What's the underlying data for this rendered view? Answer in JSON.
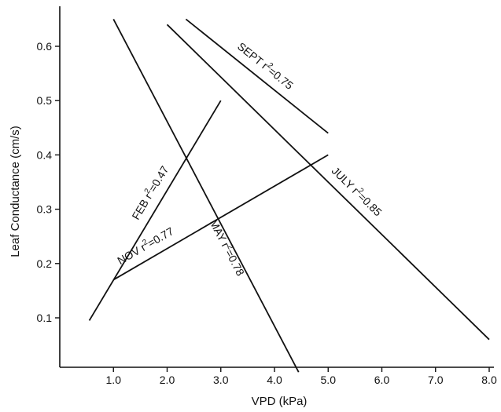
{
  "chart_data": {
    "type": "line",
    "xlabel": "VPD (kPa)",
    "ylabel": "Leaf Conductance (cm/s)",
    "xlim": [
      0,
      8.0
    ],
    "ylim": [
      0,
      0.65
    ],
    "x_ticks": [
      {
        "value": 1.0,
        "label": "1.0"
      },
      {
        "value": 2.0,
        "label": "2.0"
      },
      {
        "value": 3.0,
        "label": "3.0"
      },
      {
        "value": 4.0,
        "label": "4.0"
      },
      {
        "value": 5.0,
        "label": "5.0"
      },
      {
        "value": 6.0,
        "label": "6.0"
      },
      {
        "value": 7.0,
        "label": "7.0"
      },
      {
        "value": 8.0,
        "label": "8.0"
      }
    ],
    "y_ticks": [
      {
        "value": 0.1,
        "label": "0.1"
      },
      {
        "value": 0.2,
        "label": "0.2"
      },
      {
        "value": 0.3,
        "label": "0.3"
      },
      {
        "value": 0.4,
        "label": "0.4"
      },
      {
        "value": 0.5,
        "label": "0.5"
      },
      {
        "value": 0.6,
        "label": "0.6"
      }
    ],
    "series": [
      {
        "name": "FEB",
        "r2": "0.47",
        "x": [
          0.55,
          3.0
        ],
        "y": [
          0.095,
          0.5
        ]
      },
      {
        "name": "NOV",
        "r2": "0.77",
        "x": [
          1.0,
          5.0
        ],
        "y": [
          0.17,
          0.4
        ]
      },
      {
        "name": "MAY",
        "r2": "0.78",
        "x": [
          1.0,
          4.45
        ],
        "y": [
          0.65,
          0.0
        ]
      },
      {
        "name": "JULY",
        "r2": "0.85",
        "x": [
          2.0,
          8.0
        ],
        "y": [
          0.64,
          0.06
        ]
      },
      {
        "name": "SEPT",
        "r2": "0.75",
        "x": [
          2.35,
          5.0
        ],
        "y": [
          0.65,
          0.44
        ]
      }
    ],
    "grid": false,
    "legend": "none"
  }
}
